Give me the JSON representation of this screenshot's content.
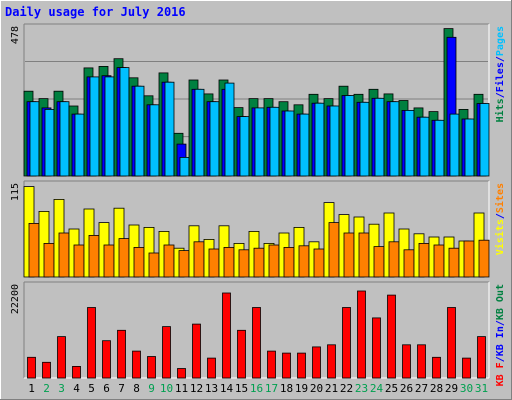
{
  "chart_data": {
    "type": "bar",
    "title": "Daily usage for July 2016",
    "colors": {
      "background": "#C0C0C0",
      "hits": "#008040",
      "files": "#0000FF",
      "pages": "#00C0FF",
      "visits": "#FFFF00",
      "sites": "#FF8000",
      "kb_out": "#008040",
      "kb_f": "#FF0000",
      "kb_in": "#0000FF",
      "text": "#0000FF",
      "weekend_label": "#00A050",
      "weekday_label": "#000000"
    },
    "categories": [
      "1",
      "2",
      "3",
      "4",
      "5",
      "6",
      "7",
      "8",
      "9",
      "10",
      "11",
      "12",
      "13",
      "14",
      "15",
      "16",
      "17",
      "18",
      "19",
      "20",
      "21",
      "22",
      "23",
      "24",
      "25",
      "26",
      "27",
      "28",
      "29",
      "30",
      "31"
    ],
    "weekend_days": [
      "2",
      "3",
      "9",
      "10",
      "16",
      "17",
      "23",
      "24",
      "30",
      "31"
    ],
    "panels": [
      {
        "id": "hits-files-pages",
        "max_label": "478",
        "ylim": [
          0,
          478
        ],
        "side_legend": [
          {
            "text": "Hits",
            "color": "#008040"
          },
          {
            "text": "/",
            "color": "#0000FF"
          },
          {
            "text": "Files",
            "color": "#0000FF"
          },
          {
            "text": "/",
            "color": "#0000FF"
          },
          {
            "text": "Pages",
            "color": "#00C0FF"
          }
        ],
        "series": [
          {
            "name": "Hits",
            "color": "#008040",
            "values": [
              274,
              250,
              274,
              226,
              349,
              354,
              379,
              317,
              259,
              333,
              138,
              310,
              265,
              310,
              221,
              250,
              250,
              240,
              230,
              264,
              250,
              290,
              264,
              280,
              265,
              244,
              220,
              208,
              476,
              215,
              264
            ]
          },
          {
            "name": "Files",
            "color": "#0000FF",
            "values": [
              240,
              220,
              240,
              200,
              320,
              324,
              350,
              290,
              230,
              303,
              103,
              280,
              240,
              280,
              192,
              220,
              222,
              210,
              200,
              235,
              226,
              260,
              238,
              251,
              240,
              212,
              190,
              180,
              448,
              184,
              234
            ]
          },
          {
            "name": "Pages",
            "color": "#00C0FF",
            "values": [
              240,
              215,
              240,
              200,
              320,
              320,
              350,
              290,
              230,
              303,
              60,
              280,
              240,
              300,
              192,
              220,
              222,
              210,
              200,
              235,
              226,
              260,
              238,
              251,
              240,
              212,
              190,
              180,
              200,
              184,
              234
            ]
          }
        ]
      },
      {
        "id": "visits-sites",
        "max_label": "115",
        "ylim": [
          0,
          115
        ],
        "side_legend": [
          {
            "text": "Visits",
            "color": "#FFFF00"
          },
          {
            "text": "/",
            "color": "#0000FF"
          },
          {
            "text": "Sites",
            "color": "#FF8000"
          }
        ],
        "series": [
          {
            "name": "Visits",
            "color": "#FFFF00",
            "values": [
              113,
              82,
              97,
              60,
              85,
              68,
              86,
              65,
              62,
              57,
              36,
              64,
              47,
              64,
              42,
              57,
              42,
              55,
              62,
              44,
              93,
              78,
              75,
              66,
              80,
              60,
              54,
              50,
              50,
              45,
              80
            ]
          },
          {
            "name": "Sites",
            "color": "#FF8000",
            "values": [
              67,
              42,
              55,
              40,
              52,
              40,
              48,
              37,
              30,
              40,
              33,
              44,
              35,
              37,
              34,
              36,
              40,
              37,
              39,
              35,
              68,
              55,
              55,
              38,
              44,
              34,
              42,
              40,
              36,
              45,
              46
            ]
          }
        ]
      },
      {
        "id": "kbytes",
        "max_label": "22200",
        "ylim": [
          0,
          22200
        ],
        "side_legend": [
          {
            "text": "KB F",
            "color": "#FF0000"
          },
          {
            "text": "/",
            "color": "#0000FF"
          },
          {
            "text": "KB In",
            "color": "#0000FF"
          },
          {
            "text": "/",
            "color": "#0000FF"
          },
          {
            "text": "KB Out",
            "color": "#008040"
          }
        ],
        "series": [
          {
            "name": "KB F",
            "color": "#FF0000",
            "values": [
              5000,
              3800,
              10000,
              2800,
              17000,
              9000,
              11500,
              6500,
              5200,
              12400,
              2300,
              13000,
              4800,
              20500,
              11500,
              17000,
              6500,
              6000,
              6000,
              7500,
              8000,
              17000,
              21000,
              14500,
              20000,
              8000,
              8000,
              5000,
              17000,
              4800,
              10000
            ]
          }
        ]
      }
    ]
  }
}
